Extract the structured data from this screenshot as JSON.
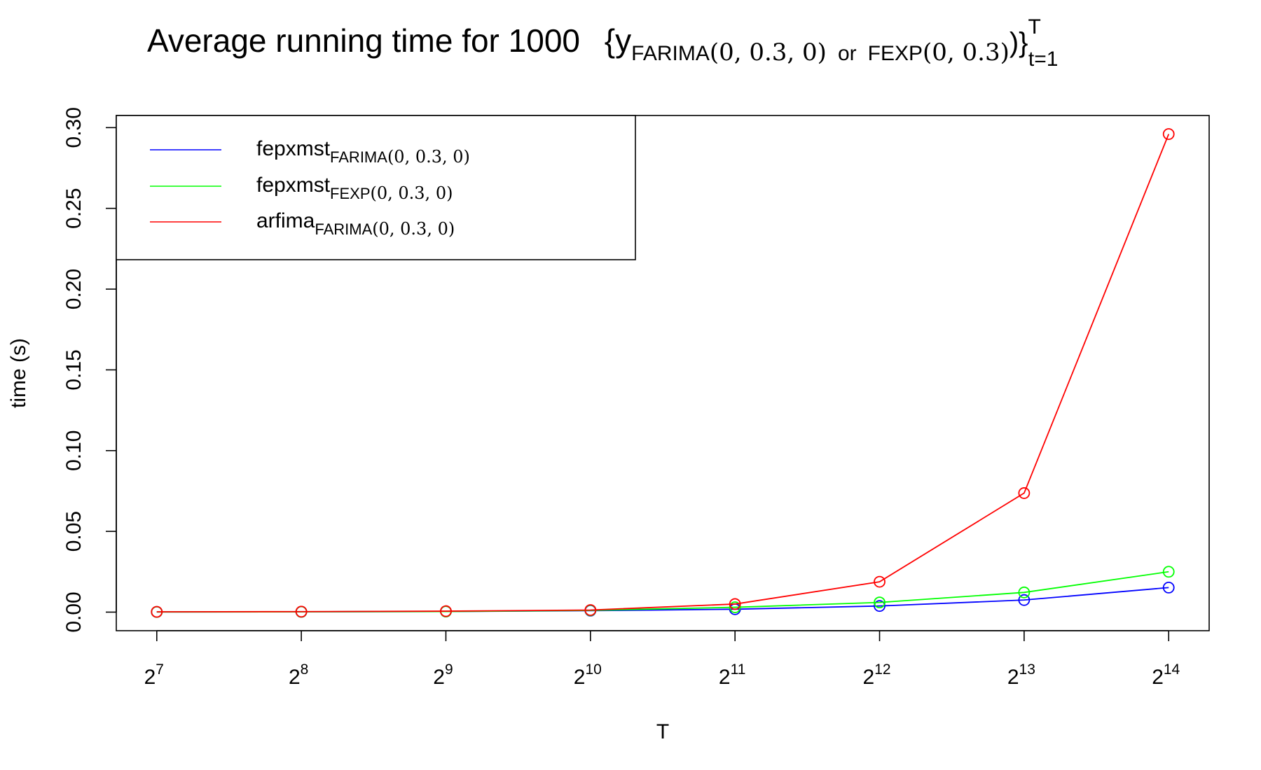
{
  "chart_data": {
    "type": "line",
    "title": {
      "main": "Average running time for 1000",
      "brace_open": "{",
      "y": "y",
      "sub1": "FARIMA",
      "args1": "(0, 0.3, 0)",
      "or": "or",
      "fexp": "FEXP",
      "args2": "(0, 0.3)",
      "close": ")}",
      "sup": "T",
      "sub_t": "t=1"
    },
    "xlabel": "T",
    "ylabel": "time (s)",
    "x_exponents": [
      7,
      8,
      9,
      10,
      11,
      12,
      13,
      14
    ],
    "x_tick_base": "2",
    "y_ticks": [
      "0.00",
      "0.05",
      "0.10",
      "0.15",
      "0.20",
      "0.25",
      "0.30"
    ],
    "y_tick_values": [
      0,
      0.05,
      0.1,
      0.15,
      0.2,
      0.25,
      0.3
    ],
    "ylim": [
      -0.0115,
      0.3075
    ],
    "xlim": [
      6.72,
      14.28
    ],
    "x_scale": "log2",
    "grid": false,
    "legend_position": "top-left",
    "series": [
      {
        "name": "fepxmst",
        "name_sub": "FARIMA",
        "name_args": "(0, 0.3, 0)",
        "color": "#0000ff",
        "values": [
          0.0001,
          0.0002,
          0.0004,
          0.0009,
          0.0018,
          0.0038,
          0.0075,
          0.0152
        ]
      },
      {
        "name": "fepxmst",
        "name_sub": "FEXP",
        "name_args": "(0, 0.3, 0)",
        "color": "#00ff00",
        "values": [
          0.0001,
          0.0002,
          0.0004,
          0.0011,
          0.003,
          0.006,
          0.0122,
          0.025
        ]
      },
      {
        "name": "arfima",
        "name_sub": "FARIMA",
        "name_args": "(0, 0.3, 0)",
        "color": "#ff0000",
        "values": [
          0.0002,
          0.0003,
          0.0006,
          0.0013,
          0.005,
          0.0188,
          0.0737,
          0.296
        ]
      }
    ]
  }
}
